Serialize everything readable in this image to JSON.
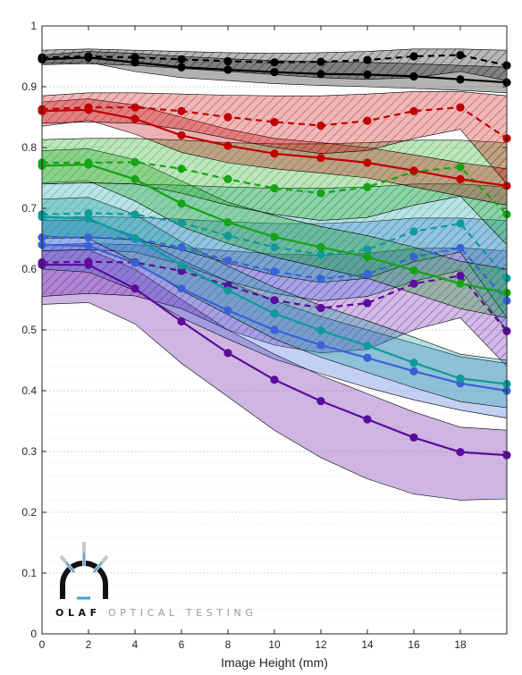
{
  "chart_data": {
    "type": "line",
    "title": "",
    "xlabel": "Image Height (mm)",
    "ylabel": "",
    "xlim": [
      0,
      20
    ],
    "ylim": [
      0,
      1
    ],
    "x_ticks": [
      0,
      2,
      4,
      6,
      8,
      10,
      12,
      14,
      16,
      18
    ],
    "y_ticks": [
      0,
      0.1,
      0.2,
      0.3,
      0.4,
      0.5,
      0.6,
      0.7,
      0.8,
      0.9,
      1
    ],
    "y_tick_labels": [
      "0",
      "0.1",
      "0.2",
      "0.3",
      "0.4",
      "0.5",
      "0.6",
      "0.7",
      "0.8",
      "0.9",
      "1"
    ],
    "grid": "horizontal dotted",
    "x": [
      0,
      2,
      4,
      6,
      8,
      10,
      12,
      14,
      16,
      18,
      20
    ],
    "series": [
      {
        "color": "#000000",
        "solid": [
          0.945,
          0.948,
          0.94,
          0.932,
          0.928,
          0.924,
          0.921,
          0.92,
          0.917,
          0.912,
          0.907
        ],
        "dashed": [
          0.948,
          0.95,
          0.948,
          0.945,
          0.942,
          0.94,
          0.941,
          0.944,
          0.95,
          0.952,
          0.935
        ],
        "solid_band_upper": [
          0.952,
          0.958,
          0.955,
          0.95,
          0.946,
          0.943,
          0.941,
          0.94,
          0.938,
          0.935,
          0.932
        ],
        "solid_band_lower": [
          0.938,
          0.94,
          0.925,
          0.915,
          0.91,
          0.905,
          0.902,
          0.9,
          0.897,
          0.894,
          0.89
        ],
        "dashed_band_upper": [
          0.96,
          0.962,
          0.96,
          0.958,
          0.956,
          0.955,
          0.956,
          0.958,
          0.962,
          0.962,
          0.96
        ],
        "dashed_band_lower": [
          0.936,
          0.938,
          0.935,
          0.93,
          0.925,
          0.92,
          0.915,
          0.912,
          0.915,
          0.925,
          0.91
        ]
      },
      {
        "color": "#c00000",
        "solid": [
          0.86,
          0.862,
          0.847,
          0.82,
          0.803,
          0.79,
          0.783,
          0.775,
          0.762,
          0.748,
          0.737
        ],
        "dashed": [
          0.863,
          0.866,
          0.866,
          0.86,
          0.85,
          0.842,
          0.836,
          0.844,
          0.86,
          0.866,
          0.815
        ],
        "solid_band_upper": [
          0.875,
          0.88,
          0.87,
          0.85,
          0.83,
          0.815,
          0.808,
          0.8,
          0.788,
          0.775,
          0.765
        ],
        "solid_band_lower": [
          0.835,
          0.845,
          0.822,
          0.792,
          0.775,
          0.765,
          0.758,
          0.75,
          0.735,
          0.72,
          0.705
        ],
        "dashed_band_upper": [
          0.885,
          0.89,
          0.89,
          0.888,
          0.886,
          0.885,
          0.885,
          0.888,
          0.892,
          0.892,
          0.885
        ],
        "dashed_band_lower": [
          0.84,
          0.842,
          0.84,
          0.83,
          0.815,
          0.8,
          0.79,
          0.795,
          0.815,
          0.83,
          0.74
        ]
      },
      {
        "color": "#16a316",
        "solid": [
          0.77,
          0.772,
          0.748,
          0.708,
          0.677,
          0.653,
          0.636,
          0.62,
          0.598,
          0.576,
          0.561
        ],
        "dashed": [
          0.775,
          0.775,
          0.776,
          0.765,
          0.748,
          0.733,
          0.725,
          0.735,
          0.76,
          0.768,
          0.69
        ],
        "solid_band_upper": [
          0.795,
          0.798,
          0.78,
          0.745,
          0.71,
          0.688,
          0.67,
          0.655,
          0.636,
          0.613,
          0.6
        ],
        "solid_band_lower": [
          0.742,
          0.745,
          0.712,
          0.67,
          0.642,
          0.62,
          0.602,
          0.585,
          0.56,
          0.535,
          0.52
        ],
        "dashed_band_upper": [
          0.813,
          0.815,
          0.815,
          0.812,
          0.808,
          0.806,
          0.806,
          0.808,
          0.812,
          0.812,
          0.808
        ],
        "dashed_band_lower": [
          0.74,
          0.742,
          0.74,
          0.725,
          0.705,
          0.69,
          0.68,
          0.685,
          0.705,
          0.72,
          0.64
        ]
      },
      {
        "color": "#109a9a",
        "solid": [
          0.686,
          0.683,
          0.651,
          0.606,
          0.565,
          0.527,
          0.499,
          0.474,
          0.446,
          0.42,
          0.411
        ],
        "dashed": [
          0.69,
          0.692,
          0.69,
          0.676,
          0.655,
          0.636,
          0.624,
          0.632,
          0.662,
          0.675,
          0.585
        ],
        "solid_band_upper": [
          0.715,
          0.718,
          0.69,
          0.645,
          0.605,
          0.57,
          0.54,
          0.515,
          0.488,
          0.46,
          0.45
        ],
        "solid_band_lower": [
          0.655,
          0.65,
          0.612,
          0.565,
          0.525,
          0.485,
          0.455,
          0.43,
          0.405,
          0.382,
          0.372
        ],
        "dashed_band_upper": [
          0.74,
          0.742,
          0.74,
          0.738,
          0.735,
          0.733,
          0.733,
          0.735,
          0.74,
          0.74,
          0.735
        ],
        "dashed_band_lower": [
          0.65,
          0.652,
          0.648,
          0.632,
          0.61,
          0.59,
          0.578,
          0.585,
          0.612,
          0.628,
          0.52
        ]
      },
      {
        "color": "#3a62d6",
        "solid": [
          0.64,
          0.638,
          0.61,
          0.568,
          0.532,
          0.5,
          0.475,
          0.454,
          0.432,
          0.412,
          0.4
        ],
        "dashed": [
          0.652,
          0.652,
          0.65,
          0.636,
          0.614,
          0.596,
          0.584,
          0.592,
          0.62,
          0.635,
          0.548
        ],
        "solid_band_upper": [
          0.68,
          0.68,
          0.655,
          0.615,
          0.58,
          0.548,
          0.522,
          0.5,
          0.478,
          0.456,
          0.445
        ],
        "solid_band_lower": [
          0.6,
          0.595,
          0.565,
          0.52,
          0.485,
          0.452,
          0.428,
          0.405,
          0.385,
          0.368,
          0.355
        ],
        "dashed_band_upper": [
          0.685,
          0.686,
          0.685,
          0.682,
          0.678,
          0.675,
          0.675,
          0.678,
          0.684,
          0.684,
          0.68
        ],
        "dashed_band_lower": [
          0.63,
          0.632,
          0.628,
          0.608,
          0.58,
          0.56,
          0.548,
          0.555,
          0.58,
          0.598,
          0.5
        ]
      },
      {
        "color": "#5c0a9e",
        "solid": [
          0.607,
          0.607,
          0.568,
          0.514,
          0.462,
          0.418,
          0.383,
          0.353,
          0.323,
          0.299,
          0.294
        ],
        "dashed": [
          0.611,
          0.612,
          0.611,
          0.597,
          0.573,
          0.549,
          0.536,
          0.544,
          0.576,
          0.589,
          0.498
        ],
        "solid_band_upper": [
          0.63,
          0.632,
          0.6,
          0.55,
          0.5,
          0.46,
          0.425,
          0.395,
          0.365,
          0.34,
          0.335
        ],
        "solid_band_lower": [
          0.542,
          0.545,
          0.51,
          0.445,
          0.39,
          0.335,
          0.29,
          0.255,
          0.23,
          0.22,
          0.222
        ],
        "dashed_band_upper": [
          0.64,
          0.642,
          0.64,
          0.636,
          0.63,
          0.625,
          0.623,
          0.626,
          0.634,
          0.635,
          0.63
        ],
        "dashed_band_lower": [
          0.555,
          0.56,
          0.556,
          0.535,
          0.5,
          0.475,
          0.462,
          0.468,
          0.5,
          0.52,
          0.44
        ]
      }
    ]
  },
  "logo": {
    "brand": "OLAF",
    "tagline": "OPTICAL TESTING",
    "color_dark": "#111111",
    "color_light": "#9a9a9a",
    "accent": "#3ba3d9"
  }
}
